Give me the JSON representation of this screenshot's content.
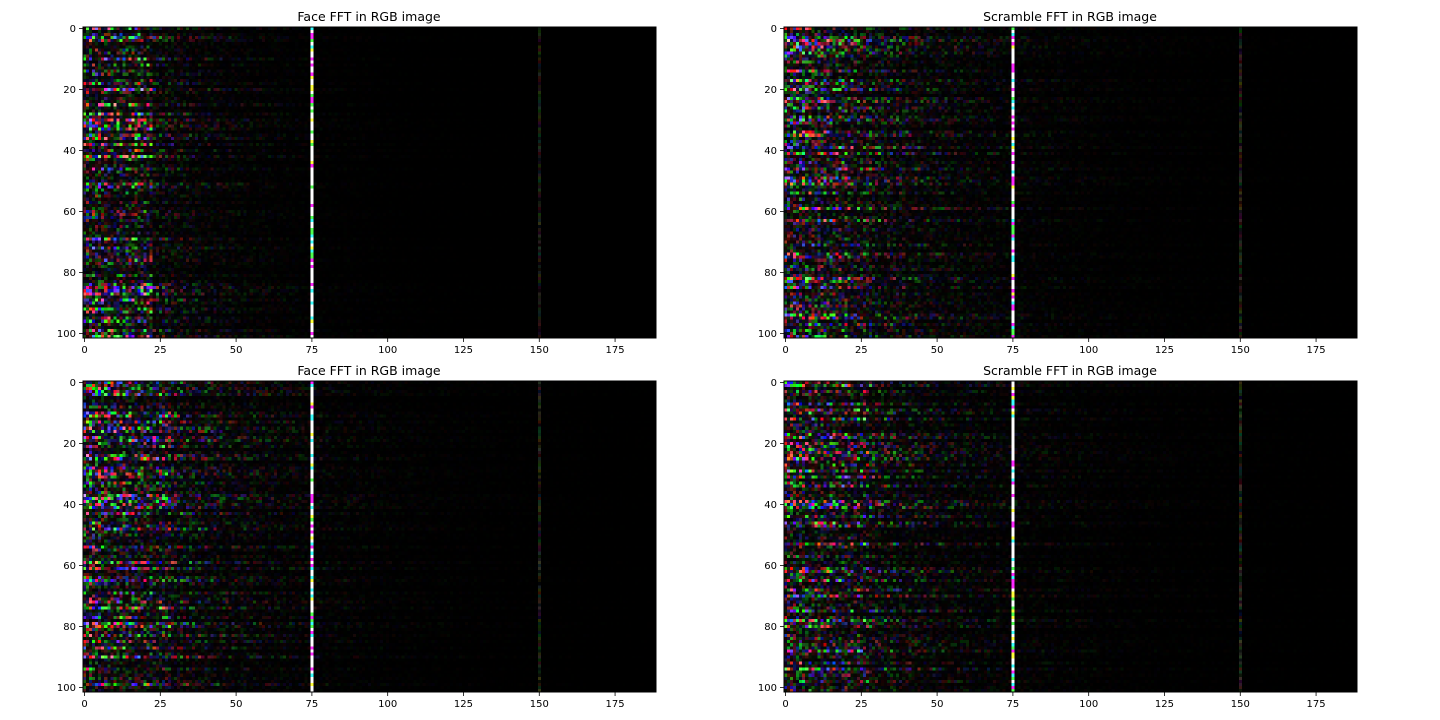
{
  "chart_data": [
    {
      "type": "heatmap",
      "title": "Face FFT in RGB image",
      "xlabel": "",
      "ylabel": "",
      "xlim": [
        -0.5,
        188.5
      ],
      "ylim": [
        101.5,
        -0.5
      ],
      "xticks": [
        0,
        25,
        50,
        75,
        100,
        125,
        150,
        175
      ],
      "yticks": [
        0,
        20,
        40,
        60,
        80,
        100
      ],
      "grid": false,
      "image_shape": [
        102,
        189,
        3
      ],
      "background_color": "#000000",
      "bright_columns": [
        {
          "x": 75,
          "intensity": 1.0,
          "note": "white"
        },
        {
          "x": 150,
          "intensity": 0.2
        }
      ],
      "energy_band": {
        "x_from": 0,
        "x_to": 22,
        "intensity": 0.95
      },
      "decay_scale_x": 22,
      "random_seed": 11
    },
    {
      "type": "heatmap",
      "title": "Scramble FFT in RGB image",
      "xlabel": "",
      "ylabel": "",
      "xlim": [
        -0.5,
        188.5
      ],
      "ylim": [
        101.5,
        -0.5
      ],
      "xticks": [
        0,
        25,
        50,
        75,
        100,
        125,
        150,
        175
      ],
      "yticks": [
        0,
        20,
        40,
        60,
        80,
        100
      ],
      "grid": false,
      "image_shape": [
        102,
        189,
        3
      ],
      "background_color": "#000000",
      "bright_columns": [
        {
          "x": 75,
          "intensity": 1.0
        },
        {
          "x": 150,
          "intensity": 0.22
        }
      ],
      "energy_band": {
        "x_from": 0,
        "x_to": 20,
        "intensity": 0.75
      },
      "decay_scale_x": 30,
      "random_seed": 23
    },
    {
      "type": "heatmap",
      "title": "Face FFT in RGB image",
      "xlabel": "",
      "ylabel": "",
      "xlim": [
        -0.5,
        188.5
      ],
      "ylim": [
        101.5,
        -0.5
      ],
      "xticks": [
        0,
        25,
        50,
        75,
        100,
        125,
        150,
        175
      ],
      "yticks": [
        0,
        20,
        40,
        60,
        80,
        100
      ],
      "grid": false,
      "image_shape": [
        102,
        189,
        3
      ],
      "background_color": "#000000",
      "bright_columns": [
        {
          "x": 75,
          "intensity": 1.0
        },
        {
          "x": 150,
          "intensity": 0.22
        }
      ],
      "energy_band": {
        "x_from": 0,
        "x_to": 28,
        "intensity": 0.7
      },
      "decay_scale_x": 30,
      "random_seed": 37
    },
    {
      "type": "heatmap",
      "title": "Scramble FFT in RGB image",
      "xlabel": "",
      "ylabel": "",
      "xlim": [
        -0.5,
        188.5
      ],
      "ylim": [
        101.5,
        -0.5
      ],
      "xticks": [
        0,
        25,
        50,
        75,
        100,
        125,
        150,
        175
      ],
      "yticks": [
        0,
        20,
        40,
        60,
        80,
        100
      ],
      "grid": false,
      "image_shape": [
        102,
        189,
        3
      ],
      "background_color": "#000000",
      "bright_columns": [
        {
          "x": 75,
          "intensity": 1.0
        },
        {
          "x": 150,
          "intensity": 0.25
        }
      ],
      "energy_band": {
        "x_from": 0,
        "x_to": 27,
        "intensity": 0.75
      },
      "decay_scale_x": 32,
      "random_seed": 53
    }
  ]
}
